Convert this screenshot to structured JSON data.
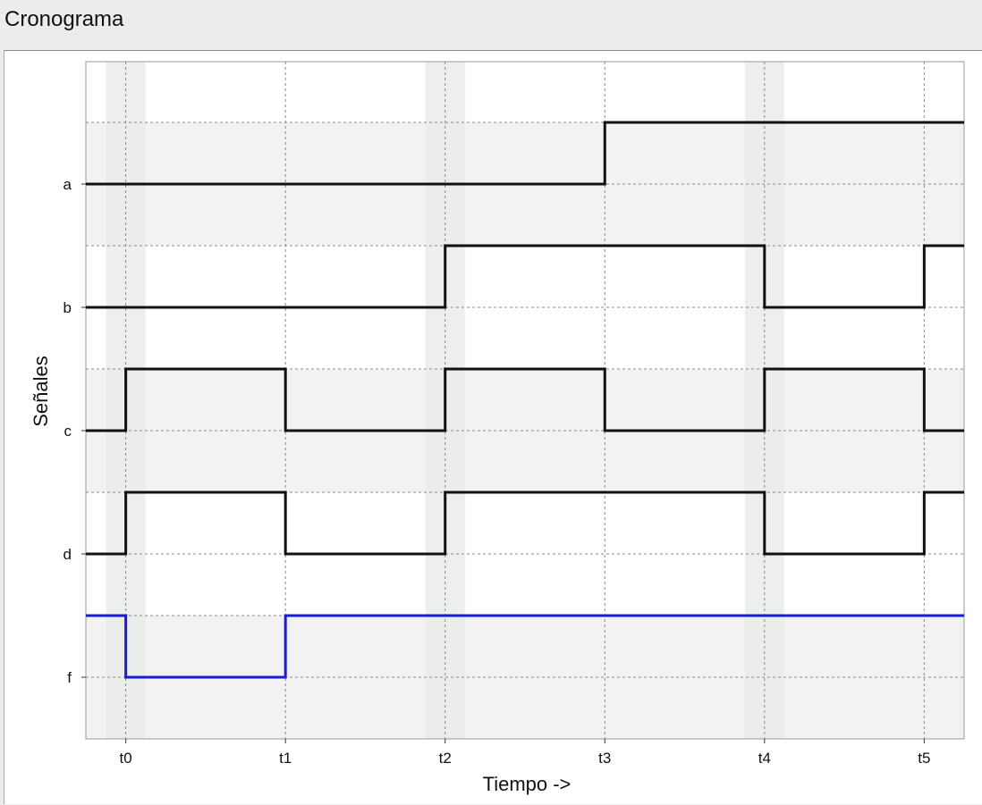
{
  "panel": {
    "title": "Cronograma"
  },
  "chart_data": {
    "type": "line",
    "subtype": "step",
    "title": "",
    "xlabel": "Tiempo ->",
    "ylabel": "Señales",
    "x_ticks": [
      "t0",
      "t1",
      "t2",
      "t3",
      "t4",
      "t5"
    ],
    "xlim": [
      -0.25,
      5.25
    ],
    "grid": true,
    "legend": "none",
    "series": [
      {
        "name": "a",
        "color": "#111111",
        "values": [
          0,
          0,
          0,
          1,
          1,
          1
        ],
        "initial": 0
      },
      {
        "name": "b",
        "color": "#111111",
        "values": [
          0,
          0,
          1,
          1,
          0,
          1
        ],
        "initial": 0
      },
      {
        "name": "c",
        "color": "#111111",
        "values": [
          1,
          0,
          1,
          0,
          1,
          0
        ],
        "initial": 0
      },
      {
        "name": "d",
        "color": "#111111",
        "values": [
          1,
          0,
          1,
          1,
          0,
          1
        ],
        "initial": 0
      },
      {
        "name": "f",
        "color": "#1a1adb",
        "values": [
          0,
          1,
          1,
          1,
          1,
          1
        ],
        "initial": 1
      }
    ],
    "highlighted_ticks": [
      "t0",
      "t2",
      "t4"
    ],
    "colors": {
      "band_alt": "#f2f2f2",
      "highlight": "#e9ece8",
      "grid": "#8a8a8a"
    }
  }
}
